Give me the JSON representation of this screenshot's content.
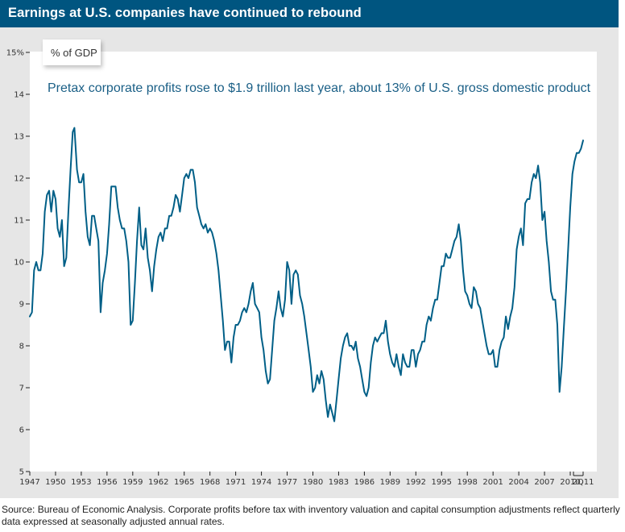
{
  "header": {
    "title": "Earnings at U.S. companies have continued to rebound"
  },
  "colors": {
    "header_bg": "#005580",
    "line": "#005f87",
    "frame": "#e6e6e6",
    "subtitle": "#1a5f86"
  },
  "unit_label": "% of GDP",
  "footer": {
    "source": "Source: Bureau of Economic Analysis. Corporate profits before tax with inventory valuation and capital consumption adjustments reflect quarterly data expressed at seasonally adjusted annual rates."
  },
  "chart_data": {
    "type": "line",
    "title": "Earnings at U.S. companies have continued to rebound",
    "subtitle": "Pretax corporate profits rose to $1.9 trillion last year, about 13% of U.S. gross domestic product",
    "ylabel": "% of GDP",
    "xlabel": "",
    "ylim": [
      5,
      15
    ],
    "xlim": [
      1947,
      2011.5
    ],
    "grid": false,
    "y_ticks": [
      5,
      6,
      7,
      8,
      9,
      10,
      11,
      12,
      13,
      14,
      15
    ],
    "y_tick_labels": [
      "5",
      "6",
      "7",
      "8",
      "9",
      "10",
      "11",
      "12",
      "13",
      "14",
      "15%"
    ],
    "x_ticks": [
      1947,
      1950,
      1953,
      1956,
      1959,
      1962,
      1965,
      1968,
      1971,
      1974,
      1977,
      1980,
      1983,
      1986,
      1989,
      1992,
      1995,
      1998,
      2001,
      2004,
      2007,
      2010,
      2011.5
    ],
    "x_tick_labels": [
      "1947",
      "1950",
      "1953",
      "1956",
      "1959",
      "1962",
      "1965",
      "1968",
      "1971",
      "1974",
      "1977",
      "1980",
      "1983",
      "1986",
      "1989",
      "1992",
      "1995",
      "1998",
      "2001",
      "2004",
      "2007",
      "2010",
      "2Q11"
    ],
    "series": [
      {
        "name": "Pretax corporate profits, % of GDP",
        "points": [
          [
            1947.0,
            8.7
          ],
          [
            1947.25,
            8.8
          ],
          [
            1947.5,
            9.8
          ],
          [
            1947.75,
            10.0
          ],
          [
            1948.0,
            9.8
          ],
          [
            1948.25,
            9.8
          ],
          [
            1948.5,
            10.2
          ],
          [
            1948.75,
            11.2
          ],
          [
            1949.0,
            11.6
          ],
          [
            1949.25,
            11.7
          ],
          [
            1949.5,
            11.2
          ],
          [
            1949.75,
            11.7
          ],
          [
            1950.0,
            11.5
          ],
          [
            1950.25,
            10.8
          ],
          [
            1950.5,
            10.6
          ],
          [
            1950.75,
            11.0
          ],
          [
            1951.0,
            9.9
          ],
          [
            1951.25,
            10.1
          ],
          [
            1951.5,
            11.2
          ],
          [
            1951.75,
            12.2
          ],
          [
            1952.0,
            13.1
          ],
          [
            1952.2,
            13.2
          ],
          [
            1952.5,
            12.2
          ],
          [
            1952.75,
            11.9
          ],
          [
            1953.0,
            11.9
          ],
          [
            1953.25,
            12.1
          ],
          [
            1953.5,
            11.2
          ],
          [
            1953.75,
            10.6
          ],
          [
            1954.0,
            10.4
          ],
          [
            1954.25,
            11.1
          ],
          [
            1954.5,
            11.1
          ],
          [
            1954.75,
            10.8
          ],
          [
            1955.0,
            10.5
          ],
          [
            1955.25,
            8.8
          ],
          [
            1955.5,
            9.5
          ],
          [
            1955.75,
            9.8
          ],
          [
            1956.0,
            10.2
          ],
          [
            1956.25,
            10.9
          ],
          [
            1956.5,
            11.8
          ],
          [
            1956.75,
            11.8
          ],
          [
            1957.0,
            11.8
          ],
          [
            1957.25,
            11.3
          ],
          [
            1957.5,
            11.0
          ],
          [
            1957.75,
            10.8
          ],
          [
            1958.0,
            10.8
          ],
          [
            1958.25,
            10.5
          ],
          [
            1958.5,
            10.0
          ],
          [
            1958.75,
            8.5
          ],
          [
            1959.0,
            8.6
          ],
          [
            1959.25,
            9.5
          ],
          [
            1959.5,
            10.5
          ],
          [
            1959.75,
            11.3
          ],
          [
            1960.0,
            10.4
          ],
          [
            1960.25,
            10.3
          ],
          [
            1960.5,
            10.8
          ],
          [
            1960.75,
            10.1
          ],
          [
            1961.0,
            9.8
          ],
          [
            1961.25,
            9.3
          ],
          [
            1961.5,
            9.9
          ],
          [
            1961.75,
            10.3
          ],
          [
            1962.0,
            10.6
          ],
          [
            1962.25,
            10.7
          ],
          [
            1962.5,
            10.5
          ],
          [
            1962.75,
            10.8
          ],
          [
            1963.0,
            10.8
          ],
          [
            1963.25,
            11.1
          ],
          [
            1963.5,
            11.1
          ],
          [
            1963.75,
            11.3
          ],
          [
            1964.0,
            11.6
          ],
          [
            1964.25,
            11.5
          ],
          [
            1964.5,
            11.2
          ],
          [
            1964.75,
            11.6
          ],
          [
            1965.0,
            12.0
          ],
          [
            1965.25,
            12.1
          ],
          [
            1965.5,
            12.0
          ],
          [
            1965.75,
            12.2
          ],
          [
            1966.0,
            12.2
          ],
          [
            1966.25,
            11.9
          ],
          [
            1966.5,
            11.3
          ],
          [
            1966.75,
            11.1
          ],
          [
            1967.0,
            10.9
          ],
          [
            1967.25,
            10.8
          ],
          [
            1967.5,
            10.9
          ],
          [
            1967.75,
            10.7
          ],
          [
            1968.0,
            10.8
          ],
          [
            1968.25,
            10.7
          ],
          [
            1968.5,
            10.5
          ],
          [
            1968.75,
            10.2
          ],
          [
            1969.0,
            9.8
          ],
          [
            1969.25,
            9.2
          ],
          [
            1969.5,
            8.6
          ],
          [
            1969.75,
            7.9
          ],
          [
            1970.0,
            8.1
          ],
          [
            1970.25,
            8.1
          ],
          [
            1970.5,
            7.6
          ],
          [
            1970.75,
            8.2
          ],
          [
            1971.0,
            8.5
          ],
          [
            1971.25,
            8.5
          ],
          [
            1971.5,
            8.6
          ],
          [
            1971.75,
            8.8
          ],
          [
            1972.0,
            8.9
          ],
          [
            1972.25,
            8.8
          ],
          [
            1972.5,
            9.0
          ],
          [
            1972.75,
            9.3
          ],
          [
            1973.0,
            9.5
          ],
          [
            1973.25,
            9.0
          ],
          [
            1973.5,
            8.9
          ],
          [
            1973.75,
            8.8
          ],
          [
            1974.0,
            8.2
          ],
          [
            1974.25,
            7.9
          ],
          [
            1974.5,
            7.4
          ],
          [
            1974.75,
            7.1
          ],
          [
            1975.0,
            7.2
          ],
          [
            1975.25,
            7.9
          ],
          [
            1975.5,
            8.6
          ],
          [
            1975.75,
            8.9
          ],
          [
            1976.0,
            9.3
          ],
          [
            1976.25,
            8.9
          ],
          [
            1976.5,
            8.7
          ],
          [
            1976.75,
            9.1
          ],
          [
            1977.0,
            10.0
          ],
          [
            1977.25,
            9.8
          ],
          [
            1977.5,
            9.0
          ],
          [
            1977.75,
            9.7
          ],
          [
            1978.0,
            9.8
          ],
          [
            1978.25,
            9.7
          ],
          [
            1978.5,
            9.2
          ],
          [
            1978.75,
            9.0
          ],
          [
            1979.0,
            8.7
          ],
          [
            1979.25,
            8.3
          ],
          [
            1979.5,
            7.9
          ],
          [
            1979.75,
            7.5
          ],
          [
            1980.0,
            6.9
          ],
          [
            1980.25,
            7.0
          ],
          [
            1980.5,
            7.3
          ],
          [
            1980.75,
            7.1
          ],
          [
            1981.0,
            7.4
          ],
          [
            1981.25,
            7.2
          ],
          [
            1981.5,
            6.7
          ],
          [
            1981.75,
            6.3
          ],
          [
            1982.0,
            6.6
          ],
          [
            1982.25,
            6.4
          ],
          [
            1982.5,
            6.2
          ],
          [
            1982.75,
            6.7
          ],
          [
            1983.0,
            7.2
          ],
          [
            1983.25,
            7.7
          ],
          [
            1983.5,
            8.0
          ],
          [
            1983.75,
            8.2
          ],
          [
            1984.0,
            8.3
          ],
          [
            1984.25,
            8.0
          ],
          [
            1984.5,
            8.0
          ],
          [
            1984.75,
            7.9
          ],
          [
            1985.0,
            8.1
          ],
          [
            1985.25,
            7.7
          ],
          [
            1985.5,
            7.5
          ],
          [
            1985.75,
            7.2
          ],
          [
            1986.0,
            6.9
          ],
          [
            1986.25,
            6.8
          ],
          [
            1986.5,
            7.0
          ],
          [
            1986.75,
            7.6
          ],
          [
            1987.0,
            8.0
          ],
          [
            1987.25,
            8.2
          ],
          [
            1987.5,
            8.1
          ],
          [
            1987.75,
            8.2
          ],
          [
            1988.0,
            8.3
          ],
          [
            1988.25,
            8.3
          ],
          [
            1988.5,
            8.6
          ],
          [
            1988.75,
            8.1
          ],
          [
            1989.0,
            7.8
          ],
          [
            1989.25,
            7.6
          ],
          [
            1989.5,
            7.5
          ],
          [
            1989.75,
            7.8
          ],
          [
            1990.0,
            7.5
          ],
          [
            1990.25,
            7.3
          ],
          [
            1990.5,
            7.8
          ],
          [
            1990.75,
            7.6
          ],
          [
            1991.0,
            7.5
          ],
          [
            1991.25,
            7.5
          ],
          [
            1991.5,
            7.9
          ],
          [
            1991.75,
            7.9
          ],
          [
            1992.0,
            7.5
          ],
          [
            1992.25,
            7.8
          ],
          [
            1992.5,
            7.9
          ],
          [
            1992.75,
            8.1
          ],
          [
            1993.0,
            8.1
          ],
          [
            1993.25,
            8.5
          ],
          [
            1993.5,
            8.7
          ],
          [
            1993.75,
            8.6
          ],
          [
            1994.0,
            8.9
          ],
          [
            1994.25,
            9.1
          ],
          [
            1994.5,
            9.1
          ],
          [
            1994.75,
            9.5
          ],
          [
            1995.0,
            9.9
          ],
          [
            1995.25,
            9.9
          ],
          [
            1995.5,
            10.2
          ],
          [
            1995.75,
            10.1
          ],
          [
            1996.0,
            10.1
          ],
          [
            1996.25,
            10.3
          ],
          [
            1996.5,
            10.5
          ],
          [
            1996.75,
            10.6
          ],
          [
            1997.0,
            10.9
          ],
          [
            1997.25,
            10.5
          ],
          [
            1997.5,
            9.8
          ],
          [
            1997.75,
            9.3
          ],
          [
            1998.0,
            9.2
          ],
          [
            1998.25,
            9.0
          ],
          [
            1998.5,
            8.9
          ],
          [
            1998.75,
            9.4
          ],
          [
            1999.0,
            9.3
          ],
          [
            1999.25,
            9.0
          ],
          [
            1999.5,
            8.9
          ],
          [
            1999.75,
            8.6
          ],
          [
            2000.0,
            8.3
          ],
          [
            2000.25,
            8.0
          ],
          [
            2000.5,
            7.8
          ],
          [
            2000.75,
            7.8
          ],
          [
            2001.0,
            7.9
          ],
          [
            2001.25,
            7.5
          ],
          [
            2001.5,
            7.5
          ],
          [
            2001.75,
            7.9
          ],
          [
            2002.0,
            8.1
          ],
          [
            2002.25,
            8.2
          ],
          [
            2002.5,
            8.7
          ],
          [
            2002.75,
            8.4
          ],
          [
            2003.0,
            8.7
          ],
          [
            2003.25,
            8.9
          ],
          [
            2003.5,
            9.4
          ],
          [
            2003.75,
            10.3
          ],
          [
            2004.0,
            10.6
          ],
          [
            2004.25,
            10.8
          ],
          [
            2004.5,
            10.4
          ],
          [
            2004.75,
            11.4
          ],
          [
            2005.0,
            11.5
          ],
          [
            2005.25,
            11.5
          ],
          [
            2005.5,
            11.9
          ],
          [
            2005.75,
            12.1
          ],
          [
            2006.0,
            12.0
          ],
          [
            2006.25,
            12.3
          ],
          [
            2006.5,
            11.9
          ],
          [
            2006.75,
            11.0
          ],
          [
            2007.0,
            11.2
          ],
          [
            2007.25,
            10.5
          ],
          [
            2007.5,
            10.0
          ],
          [
            2007.75,
            9.3
          ],
          [
            2008.0,
            9.1
          ],
          [
            2008.25,
            9.1
          ],
          [
            2008.5,
            8.5
          ],
          [
            2008.75,
            6.9
          ],
          [
            2009.0,
            7.5
          ],
          [
            2009.25,
            8.4
          ],
          [
            2009.5,
            9.3
          ],
          [
            2009.75,
            10.3
          ],
          [
            2010.0,
            11.3
          ],
          [
            2010.25,
            12.1
          ],
          [
            2010.5,
            12.4
          ],
          [
            2010.75,
            12.6
          ],
          [
            2011.0,
            12.6
          ],
          [
            2011.25,
            12.7
          ],
          [
            2011.5,
            12.9
          ]
        ]
      }
    ]
  }
}
